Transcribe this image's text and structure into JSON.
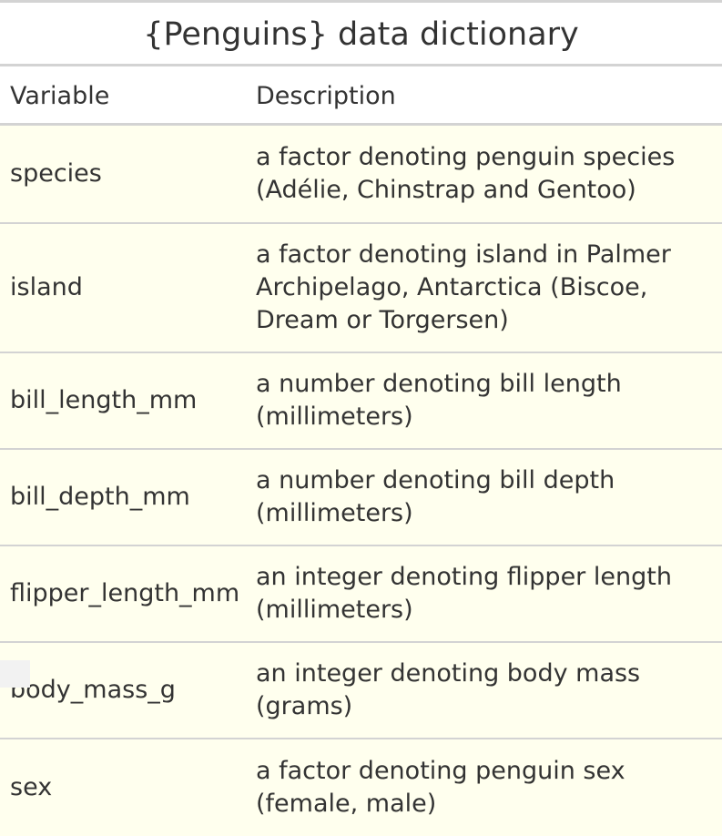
{
  "title": "{Penguins} data dictionary",
  "columns": {
    "variable": "Variable",
    "description": "Description"
  },
  "rows": [
    {
      "variable": "species",
      "description": "a factor denoting penguin species (Adélie, Chinstrap and Gentoo)"
    },
    {
      "variable": "island",
      "description": "a factor denoting island in Palmer Archipelago, Antarctica (Biscoe, Dream or Torgersen)"
    },
    {
      "variable": "bill_length_mm",
      "description": "a number denoting bill length (millimeters)"
    },
    {
      "variable": "bill_depth_mm",
      "description": "a number denoting bill depth (millimeters)"
    },
    {
      "variable": "flipper_length_mm",
      "description": "an integer denoting flipper length (millimeters)"
    },
    {
      "variable": "body_mass_g",
      "description": "an integer denoting body mass (grams)"
    },
    {
      "variable": "sex",
      "description": "a factor denoting penguin sex (female, male)"
    }
  ],
  "colors": {
    "row_background": "#ffffee",
    "border": "#d3d3d3",
    "text": "#333333"
  }
}
